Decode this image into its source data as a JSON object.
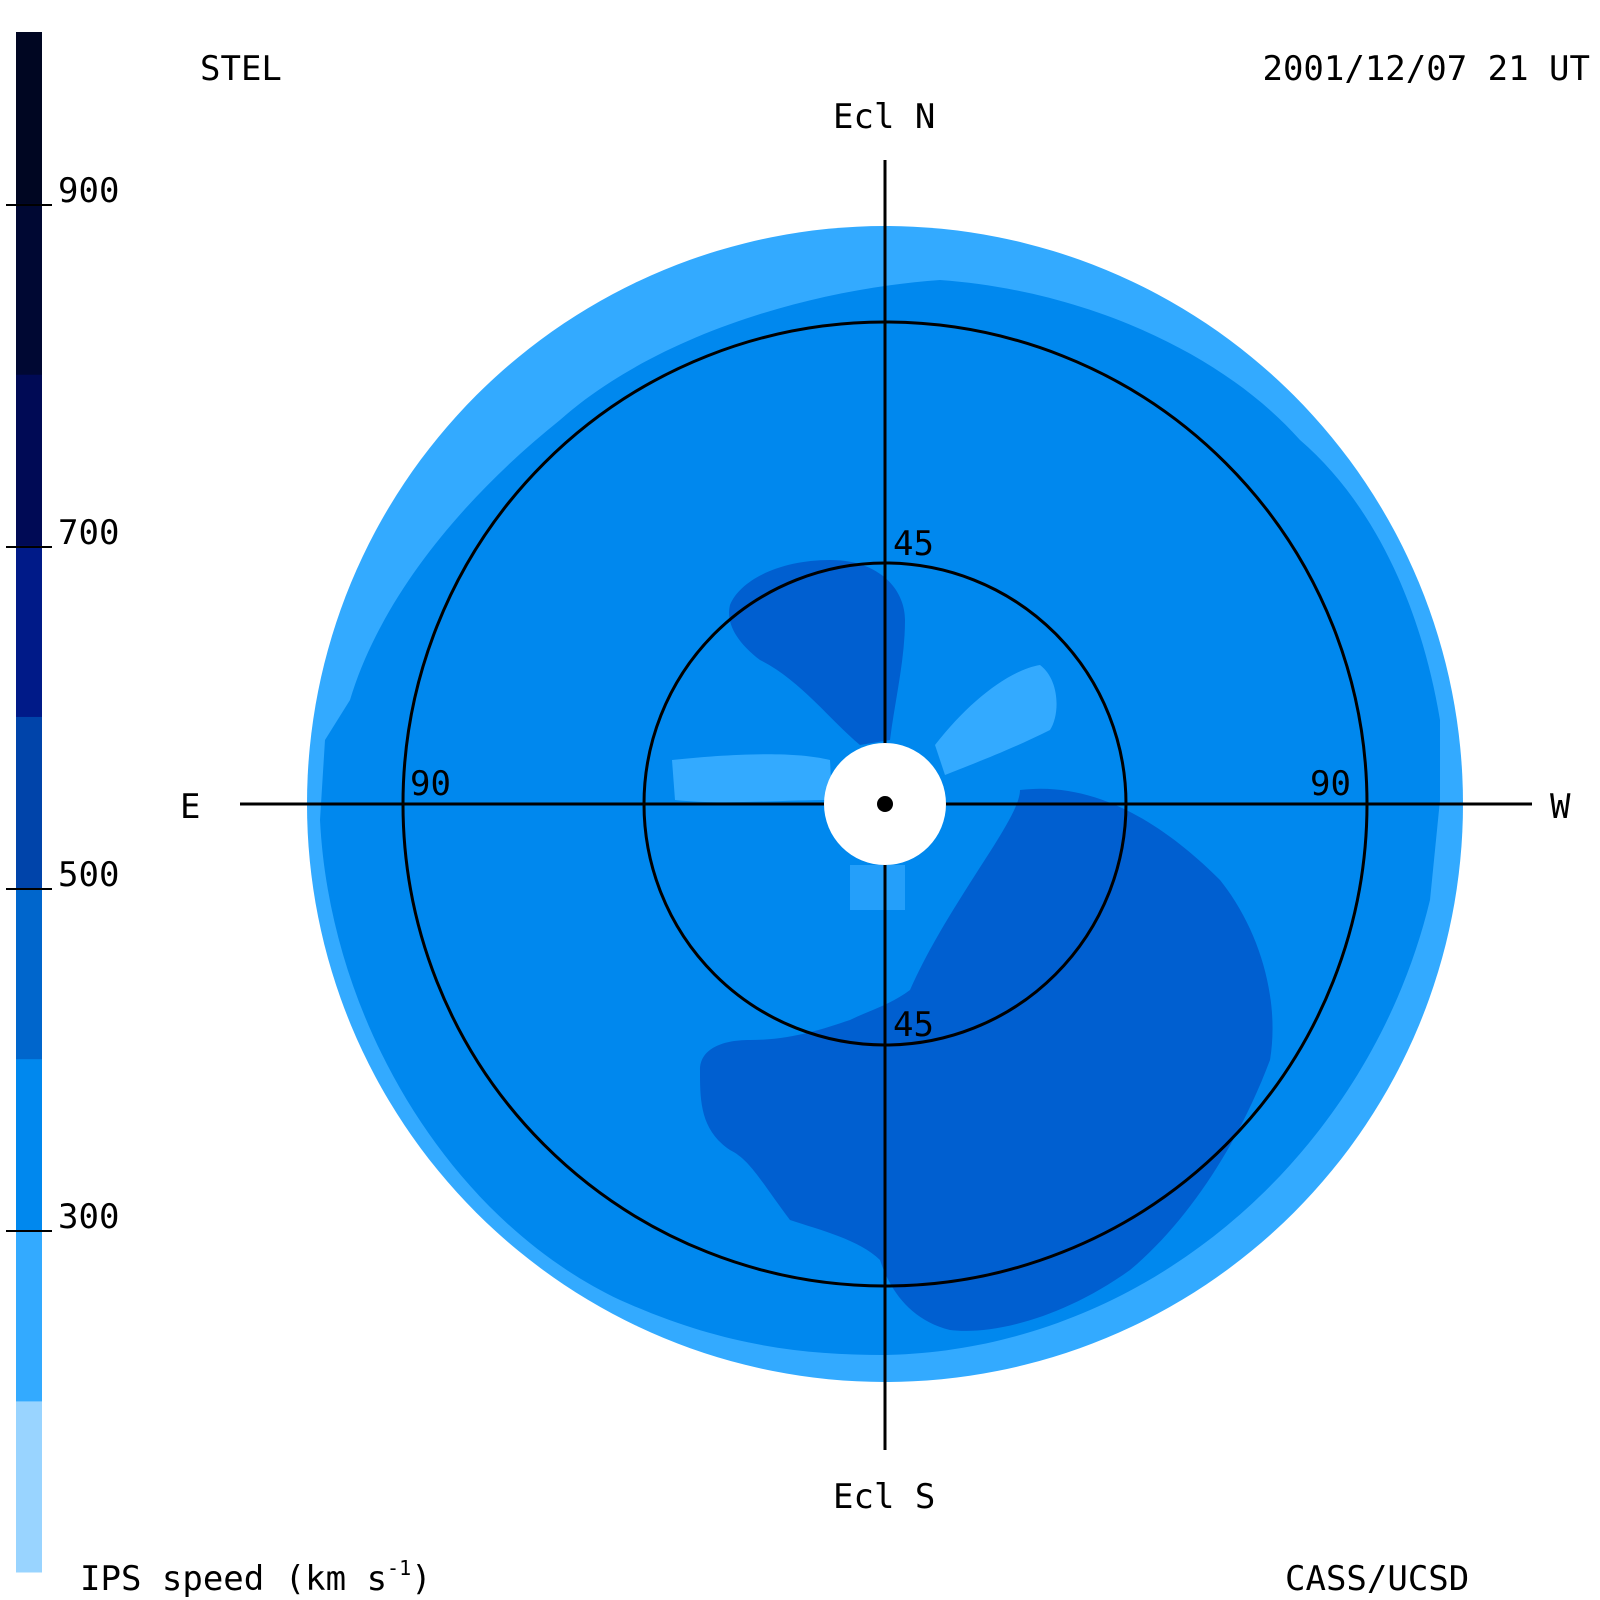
{
  "header": {
    "instrument": "STEL",
    "timestamp": "2001/12/07 21 UT"
  },
  "footer": {
    "credit": "CASS/UCSD",
    "colorbar_title_main": "IPS speed (km s",
    "colorbar_title_sup": "-1",
    "colorbar_title_end": ")"
  },
  "directions": {
    "north": "Ecl N",
    "south": "Ecl S",
    "east": "E",
    "west": "W"
  },
  "rings": {
    "inner_label_top": "45",
    "inner_label_bottom": "45",
    "outer_label_east": "90",
    "outer_label_west": "90"
  },
  "colorbar": {
    "ticks": [
      "900",
      "700",
      "500",
      "300"
    ],
    "bands": [
      "#99d4ff",
      "#33aaff",
      "#0088ee",
      "#0066cc",
      "#0044aa",
      "#001a88",
      "#000a55",
      "#000833",
      "#000622"
    ]
  },
  "map_colors": {
    "background": "#ffffff",
    "outer_band": "#33aaff",
    "main_field": "#0088ee",
    "fast_region": "#005fd0",
    "slow_region": "#33aaff",
    "sun_disk": "#ffffff",
    "lines": "#000000"
  }
}
